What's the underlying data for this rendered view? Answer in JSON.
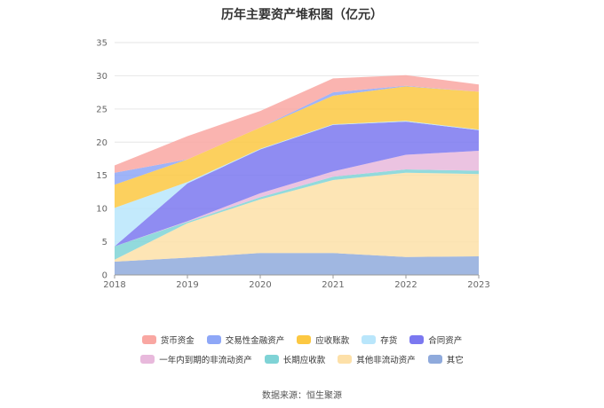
{
  "chart_data": {
    "type": "area",
    "stacked": true,
    "title": "历年主要资产堆积图（亿元）",
    "source": "数据来源：恒生聚源",
    "x": [
      "2018",
      "2019",
      "2020",
      "2021",
      "2022",
      "2023"
    ],
    "ylim": [
      0,
      35
    ],
    "yticks": [
      0,
      5,
      10,
      15,
      20,
      25,
      30,
      35
    ],
    "grid": true,
    "series": [
      {
        "name": "其它",
        "color": "#8faadc",
        "values": [
          2.0,
          2.6,
          3.3,
          3.3,
          2.7,
          2.8
        ]
      },
      {
        "name": "其他非流动资产",
        "color": "#fde0a8",
        "values": [
          0.3,
          5.2,
          8.1,
          11.0,
          12.7,
          12.4
        ]
      },
      {
        "name": "长期应收款",
        "color": "#7fd3d6",
        "values": [
          2.0,
          0.2,
          0.3,
          0.5,
          0.5,
          0.5
        ]
      },
      {
        "name": "一年内到期的非流动资产",
        "color": "#e8b9dc",
        "values": [
          0.0,
          0.1,
          0.6,
          0.8,
          2.2,
          3.0
        ]
      },
      {
        "name": "合同资产",
        "color": "#7b78f0",
        "values": [
          0.0,
          5.7,
          6.6,
          7.0,
          5.0,
          3.1
        ]
      },
      {
        "name": "存货",
        "color": "#b9e6fb",
        "values": [
          5.8,
          0.2,
          0.1,
          0.1,
          0.1,
          0.1
        ]
      },
      {
        "name": "应收账款",
        "color": "#fcc842",
        "values": [
          3.5,
          3.4,
          3.2,
          4.3,
          5.2,
          5.7
        ]
      },
      {
        "name": "交易性金融资产",
        "color": "#8ea7f7",
        "values": [
          1.8,
          0.0,
          0.0,
          0.5,
          0.1,
          0.0
        ]
      },
      {
        "name": "货币资金",
        "color": "#f9a7a2",
        "values": [
          1.1,
          3.5,
          2.5,
          2.1,
          1.6,
          1.1
        ]
      }
    ],
    "legend": [
      [
        "货币资金",
        "交易性金融资产",
        "应收账款",
        "存货",
        "合同资产"
      ],
      [
        "一年内到期的非流动资产",
        "长期应收款",
        "其他非流动资产",
        "其它"
      ]
    ]
  }
}
